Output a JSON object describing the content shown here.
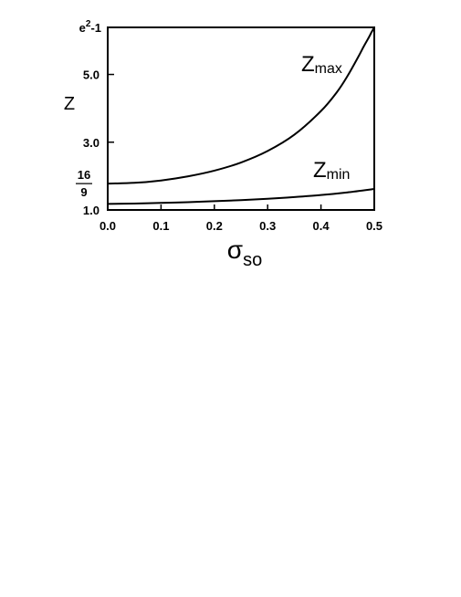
{
  "chart_data": {
    "type": "line",
    "title": "",
    "xlabel": "σ",
    "xlabel_subscript": "so",
    "ylabel": "Z",
    "xlim": [
      0.0,
      0.5
    ],
    "ylim": [
      1.0,
      6.389
    ],
    "x_ticks": [
      {
        "value": 0.0,
        "label": "0.0"
      },
      {
        "value": 0.1,
        "label": "0.1"
      },
      {
        "value": 0.2,
        "label": "0.2"
      },
      {
        "value": 0.3,
        "label": "0.3"
      },
      {
        "value": 0.4,
        "label": "0.4"
      },
      {
        "value": 0.5,
        "label": "0.5"
      }
    ],
    "y_ticks": [
      {
        "value": 1.0,
        "label": "1.0"
      },
      {
        "value": 1.778,
        "label": "16/9",
        "numerator": "16",
        "denominator": "9"
      },
      {
        "value": 3.0,
        "label": "3.0"
      },
      {
        "value": 5.0,
        "label": "5.0"
      },
      {
        "value": 6.389,
        "label": "e²-1",
        "base": "e",
        "sup": "2",
        "rest": "-1"
      }
    ],
    "series": [
      {
        "name": "Z",
        "subscript": "max",
        "x": [
          0.0,
          0.05,
          0.1,
          0.15,
          0.2,
          0.25,
          0.3,
          0.35,
          0.4,
          0.43,
          0.45,
          0.47,
          0.48,
          0.49,
          0.495,
          0.5
        ],
        "y": [
          1.778,
          1.8,
          1.87,
          1.99,
          2.16,
          2.4,
          2.74,
          3.22,
          3.92,
          4.48,
          4.96,
          5.52,
          5.82,
          6.1,
          6.25,
          6.389
        ]
      },
      {
        "name": "Z",
        "subscript": "min",
        "x": [
          0.0,
          0.05,
          0.1,
          0.15,
          0.2,
          0.25,
          0.3,
          0.35,
          0.4,
          0.45,
          0.5
        ],
        "y": [
          1.18,
          1.19,
          1.21,
          1.23,
          1.26,
          1.29,
          1.33,
          1.38,
          1.44,
          1.52,
          1.62
        ]
      }
    ],
    "grid": false,
    "legend": "none"
  }
}
